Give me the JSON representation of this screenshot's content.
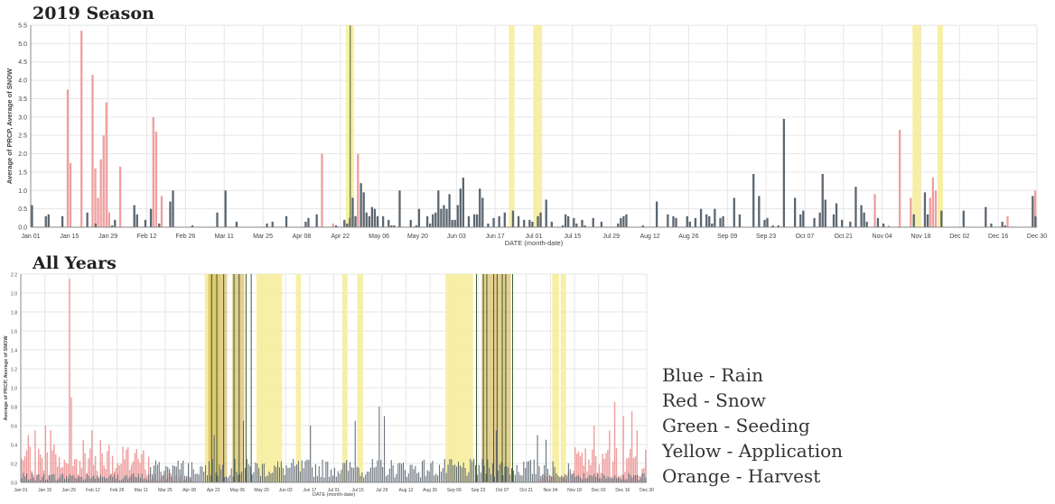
{
  "title_2019": "2019 Season",
  "title_all": "All Years",
  "colors": {
    "rain": "#5b6670",
    "snow": "#ef9e9e",
    "application": "#f6ec96",
    "harvest": "#d2b14a",
    "seeding": "#3a5a2a",
    "grid": "#e6e6e6",
    "axis": "#888888",
    "text": "#444444"
  },
  "legend": [
    "Blue - Rain",
    "Red - Snow",
    "Green - Seeding",
    "Yellow - Application",
    "Orange - Harvest"
  ],
  "chart_data": [
    {
      "type": "bar",
      "title": "2019 Season",
      "xlabel": "DATE (month-date)",
      "ylabel": "Average of PRCP, Average of SNOW",
      "ylim": [
        0,
        5.5
      ],
      "yticks": [
        "0.0",
        "0.5",
        "1.0",
        "1.5",
        "2.0",
        "2.5",
        "3.0",
        "3.5",
        "4.0",
        "4.5",
        "5.0",
        "5.5"
      ],
      "xticks": [
        "Jan 01",
        "Jan 15",
        "Jan 29",
        "Feb 12",
        "Feb 26",
        "Mar 11",
        "Mar 25",
        "Apr 08",
        "Apr 22",
        "May 06",
        "May 20",
        "Jun 03",
        "Jun 17",
        "Jul 01",
        "Jul 15",
        "Jul 29",
        "Aug 12",
        "Aug 26",
        "Sep 09",
        "Sep 23",
        "Oct 07",
        "Oct 21",
        "Nov 04",
        "Nov 18",
        "Dec 02",
        "Dec 16",
        "Dec 30"
      ],
      "days": 364,
      "snow": [
        [
          13,
          3.75
        ],
        [
          14,
          1.75
        ],
        [
          18,
          5.35
        ],
        [
          22,
          4.15
        ],
        [
          23,
          1.6
        ],
        [
          24,
          0.8
        ],
        [
          25,
          1.85
        ],
        [
          26,
          2.5
        ],
        [
          27,
          3.4
        ],
        [
          28,
          0.4
        ],
        [
          32,
          1.65
        ],
        [
          44,
          3.0
        ],
        [
          45,
          2.6
        ],
        [
          47,
          0.85
        ],
        [
          105,
          2.0
        ],
        [
          118,
          2.0
        ],
        [
          109,
          0.1
        ],
        [
          326,
          0.5
        ],
        [
          353,
          0.3
        ],
        [
          363,
          1.0
        ],
        [
          325,
          0.8
        ],
        [
          326,
          1.35
        ],
        [
          327,
          1.0
        ],
        [
          305,
          0.9
        ],
        [
          310,
          0.05
        ],
        [
          314,
          2.65
        ],
        [
          318,
          0.8
        ]
      ],
      "rain": [
        [
          0,
          0.6
        ],
        [
          5,
          0.3
        ],
        [
          6,
          0.35
        ],
        [
          11,
          0.3
        ],
        [
          20,
          0.4
        ],
        [
          23,
          0.1
        ],
        [
          29,
          0.05
        ],
        [
          30,
          0.2
        ],
        [
          37,
          0.6
        ],
        [
          38,
          0.35
        ],
        [
          41,
          0.2
        ],
        [
          43,
          0.5
        ],
        [
          46,
          0.1
        ],
        [
          50,
          0.7
        ],
        [
          51,
          1.0
        ],
        [
          58,
          0.05
        ],
        [
          67,
          0.4
        ],
        [
          70,
          1.0
        ],
        [
          74,
          0.15
        ],
        [
          85,
          0.1
        ],
        [
          87,
          0.15
        ],
        [
          92,
          0.3
        ],
        [
          99,
          0.15
        ],
        [
          100,
          0.25
        ],
        [
          103,
          0.35
        ],
        [
          110,
          0.05
        ],
        [
          113,
          0.2
        ],
        [
          114,
          0.1
        ],
        [
          115,
          0.25
        ],
        [
          116,
          0.8
        ],
        [
          117,
          0.3
        ],
        [
          119,
          1.2
        ],
        [
          120,
          0.95
        ],
        [
          121,
          0.4
        ],
        [
          122,
          0.3
        ],
        [
          123,
          0.55
        ],
        [
          124,
          0.5
        ],
        [
          125,
          0.3
        ],
        [
          127,
          0.3
        ],
        [
          129,
          0.2
        ],
        [
          130,
          0.05
        ],
        [
          131,
          0.05
        ],
        [
          133,
          1.0
        ],
        [
          137,
          0.2
        ],
        [
          139,
          0.05
        ],
        [
          140,
          0.5
        ],
        [
          143,
          0.3
        ],
        [
          144,
          0.1
        ],
        [
          145,
          0.35
        ],
        [
          146,
          0.4
        ],
        [
          147,
          1.0
        ],
        [
          148,
          0.5
        ],
        [
          149,
          0.6
        ],
        [
          150,
          0.5
        ],
        [
          151,
          0.9
        ],
        [
          152,
          0.2
        ],
        [
          153,
          0.2
        ],
        [
          154,
          0.6
        ],
        [
          155,
          1.05
        ],
        [
          156,
          1.35
        ],
        [
          158,
          0.3
        ],
        [
          160,
          0.35
        ],
        [
          161,
          0.35
        ],
        [
          162,
          1.05
        ],
        [
          163,
          0.8
        ],
        [
          165,
          0.1
        ],
        [
          167,
          0.25
        ],
        [
          169,
          0.3
        ],
        [
          171,
          0.4
        ],
        [
          174,
          0.45
        ],
        [
          176,
          0.3
        ],
        [
          178,
          0.2
        ],
        [
          180,
          0.2
        ],
        [
          181,
          0.15
        ],
        [
          183,
          0.3
        ],
        [
          184,
          0.4
        ],
        [
          186,
          0.75
        ],
        [
          188,
          0.15
        ],
        [
          192,
          0.05
        ],
        [
          193,
          0.35
        ],
        [
          194,
          0.3
        ],
        [
          196,
          0.25
        ],
        [
          197,
          0.1
        ],
        [
          199,
          0.2
        ],
        [
          200,
          0.05
        ],
        [
          203,
          0.25
        ],
        [
          206,
          0.15
        ],
        [
          212,
          0.1
        ],
        [
          213,
          0.25
        ],
        [
          214,
          0.3
        ],
        [
          215,
          0.35
        ],
        [
          221,
          0.05
        ],
        [
          226,
          0.7
        ],
        [
          230,
          0.35
        ],
        [
          232,
          0.3
        ],
        [
          233,
          0.25
        ],
        [
          237,
          0.3
        ],
        [
          238,
          0.15
        ],
        [
          240,
          0.25
        ],
        [
          242,
          0.5
        ],
        [
          244,
          0.35
        ],
        [
          245,
          0.3
        ],
        [
          246,
          0.1
        ],
        [
          247,
          0.5
        ],
        [
          249,
          0.25
        ],
        [
          250,
          0.3
        ],
        [
          254,
          0.8
        ],
        [
          256,
          0.35
        ],
        [
          261,
          1.45
        ],
        [
          263,
          0.85
        ],
        [
          265,
          0.2
        ],
        [
          266,
          0.25
        ],
        [
          268,
          0.05
        ],
        [
          270,
          0.05
        ],
        [
          272,
          2.95
        ],
        [
          276,
          0.8
        ],
        [
          278,
          0.35
        ],
        [
          279,
          0.45
        ],
        [
          283,
          0.25
        ],
        [
          285,
          0.4
        ],
        [
          286,
          1.45
        ],
        [
          287,
          0.75
        ],
        [
          290,
          0.35
        ],
        [
          291,
          0.65
        ],
        [
          293,
          0.2
        ],
        [
          296,
          0.15
        ],
        [
          298,
          1.1
        ],
        [
          300,
          0.6
        ],
        [
          301,
          0.4
        ],
        [
          302,
          0.15
        ],
        [
          306,
          0.25
        ],
        [
          308,
          0.1
        ],
        [
          319,
          0.35
        ],
        [
          323,
          0.95
        ],
        [
          324,
          0.35
        ],
        [
          329,
          0.45
        ],
        [
          337,
          0.45
        ],
        [
          345,
          0.55
        ],
        [
          347,
          0.1
        ],
        [
          352,
          0.05
        ],
        [
          351,
          0.15
        ],
        [
          362,
          0.85
        ],
        [
          363,
          0.3
        ]
      ],
      "application_bands": [
        [
          114,
          117
        ],
        [
          173,
          175
        ],
        [
          182,
          185
        ],
        [
          319,
          322
        ],
        [
          328,
          330
        ]
      ],
      "seeding_lines": [
        115.6
      ]
    },
    {
      "type": "bar",
      "title": "All Years",
      "xlabel": "DATE (month-date)",
      "ylabel": "Average of PRCP, Average of SNOW",
      "ylim": [
        0,
        2.2
      ],
      "yticks": [
        "0.0",
        "0.2",
        "0.4",
        "0.6",
        "0.8",
        "1.0",
        "1.2",
        "1.4",
        "1.6",
        "1.8",
        "2.0",
        "2.2"
      ],
      "xticks": [
        "Jan 01",
        "Jan 15",
        "Jan 29",
        "Feb 12",
        "Feb 26",
        "Mar 11",
        "Mar 25",
        "Apr 08",
        "Apr 22",
        "May 06",
        "May 20",
        "Jun 03",
        "Jun 17",
        "Jul 01",
        "Jul 15",
        "Jul 29",
        "Aug 12",
        "Aug 26",
        "Sep 09",
        "Sep 23",
        "Oct 07",
        "Oct 21",
        "Nov 04",
        "Nov 18",
        "Dec 02",
        "Dec 16",
        "Dec 30"
      ],
      "days": 364,
      "snow_peak": [
        [
          28,
          2.15
        ],
        [
          29,
          0.9
        ],
        [
          4,
          0.5
        ],
        [
          8,
          0.55
        ],
        [
          14,
          0.6
        ],
        [
          17,
          0.55
        ],
        [
          19,
          0.4
        ],
        [
          36,
          0.45
        ],
        [
          41,
          0.55
        ],
        [
          46,
          0.45
        ],
        [
          51,
          0.4
        ],
        [
          333,
          0.6
        ],
        [
          342,
          0.55
        ],
        [
          345,
          0.85
        ],
        [
          350,
          0.7
        ],
        [
          355,
          0.75
        ],
        [
          358,
          0.55
        ]
      ],
      "rain_peak": [
        [
          112,
          0.5
        ],
        [
          129,
          0.65
        ],
        [
          168,
          0.6
        ],
        [
          194,
          0.65
        ],
        [
          208,
          0.8
        ],
        [
          211,
          0.7
        ],
        [
          276,
          0.55
        ],
        [
          300,
          0.5
        ],
        [
          305,
          0.45
        ]
      ],
      "application_bands": [
        [
          107,
          116
        ],
        [
          137,
          152
        ],
        [
          160,
          163
        ],
        [
          187,
          190
        ],
        [
          196,
          199
        ],
        [
          247,
          263
        ],
        [
          309,
          313
        ],
        [
          314,
          317
        ]
      ],
      "harvest_bands": [
        [
          109,
          120
        ],
        [
          123,
          130
        ],
        [
          268,
          285
        ]
      ],
      "seeding_lines": [
        111,
        114,
        118,
        124,
        127,
        131,
        134,
        265,
        269,
        271,
        275,
        277,
        280,
        282,
        286
      ]
    }
  ]
}
